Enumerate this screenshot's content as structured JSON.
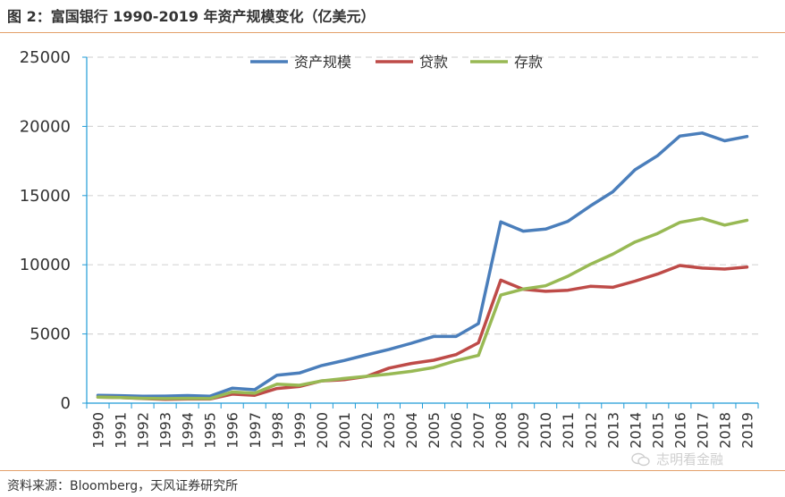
{
  "title": "图 2：富国银行 1990-2019 年资产规模变化（亿美元）",
  "source": "资料来源：Bloomberg，天风证券研究所",
  "watermark": "志明看金融",
  "chart_data": {
    "type": "line",
    "title": "",
    "xlabel": "",
    "ylabel": "",
    "ylim": [
      0,
      25000
    ],
    "yticks": [
      0,
      5000,
      10000,
      15000,
      20000,
      25000
    ],
    "grid": true,
    "legend": "top-center",
    "categories": [
      "1990",
      "1991",
      "1992",
      "1993",
      "1994",
      "1995",
      "1996",
      "1997",
      "1998",
      "1999",
      "2000",
      "2001",
      "2002",
      "2003",
      "2004",
      "2005",
      "2006",
      "2007",
      "2008",
      "2009",
      "2010",
      "2011",
      "2012",
      "2013",
      "2014",
      "2015",
      "2016",
      "2017",
      "2018",
      "2019"
    ],
    "series": [
      {
        "name": "资产规模",
        "color": "#4a7ebb",
        "values": [
          560,
          540,
          500,
          510,
          550,
          500,
          1080,
          970,
          2020,
          2180,
          2720,
          3080,
          3490,
          3880,
          4330,
          4820,
          4820,
          5750,
          13100,
          12430,
          12580,
          13140,
          14250,
          15270,
          16870,
          17880,
          19300,
          19520,
          18960,
          19270
        ]
      },
      {
        "name": "贷款",
        "color": "#be4b48",
        "values": [
          440,
          410,
          330,
          280,
          300,
          300,
          650,
          570,
          1060,
          1200,
          1610,
          1690,
          1930,
          2530,
          2870,
          3100,
          3510,
          4360,
          8890,
          8230,
          8080,
          8160,
          8440,
          8370,
          8820,
          9330,
          9950,
          9760,
          9690,
          9830
        ]
      },
      {
        "name": "存款",
        "color": "#98b954",
        "values": [
          430,
          400,
          350,
          330,
          350,
          330,
          810,
          720,
          1370,
          1290,
          1610,
          1780,
          1940,
          2100,
          2300,
          2580,
          3070,
          3450,
          7810,
          8240,
          8480,
          9170,
          10030,
          10760,
          11650,
          12260,
          13060,
          13350,
          12870,
          13220
        ]
      }
    ]
  }
}
